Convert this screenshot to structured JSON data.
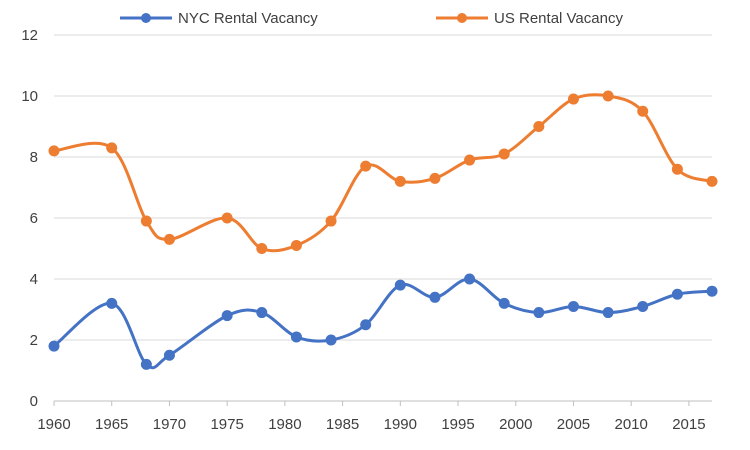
{
  "chart_data": {
    "type": "line",
    "title": "",
    "xlabel": "",
    "ylabel": "",
    "xlim": [
      1960,
      2017
    ],
    "ylim": [
      0,
      12
    ],
    "x_ticks": [
      1960,
      1965,
      1970,
      1975,
      1980,
      1985,
      1990,
      1995,
      2000,
      2005,
      2010,
      2015
    ],
    "y_ticks": [
      0,
      2,
      4,
      6,
      8,
      10,
      12
    ],
    "grid": "horizontal",
    "smooth": true,
    "legend": "top-center",
    "series": [
      {
        "name": "NYC Rental Vacancy",
        "color": "#4472C4",
        "points": [
          [
            1960,
            1.8
          ],
          [
            1965,
            3.2
          ],
          [
            1968,
            1.2
          ],
          [
            1970,
            1.5
          ],
          [
            1975,
            2.8
          ],
          [
            1978,
            2.9
          ],
          [
            1981,
            2.1
          ],
          [
            1984,
            2.0
          ],
          [
            1987,
            2.5
          ],
          [
            1990,
            3.8
          ],
          [
            1993,
            3.4
          ],
          [
            1996,
            4.0
          ],
          [
            1999,
            3.2
          ],
          [
            2002,
            2.9
          ],
          [
            2005,
            3.1
          ],
          [
            2008,
            2.9
          ],
          [
            2011,
            3.1
          ],
          [
            2014,
            3.5
          ],
          [
            2017,
            3.6
          ]
        ]
      },
      {
        "name": "US Rental Vacancy",
        "color": "#ED7D31",
        "points": [
          [
            1960,
            8.2
          ],
          [
            1965,
            8.3
          ],
          [
            1968,
            5.9
          ],
          [
            1970,
            5.3
          ],
          [
            1975,
            6.0
          ],
          [
            1978,
            5.0
          ],
          [
            1981,
            5.1
          ],
          [
            1984,
            5.9
          ],
          [
            1987,
            7.7
          ],
          [
            1990,
            7.2
          ],
          [
            1993,
            7.3
          ],
          [
            1996,
            7.9
          ],
          [
            1999,
            8.1
          ],
          [
            2002,
            9.0
          ],
          [
            2005,
            9.9
          ],
          [
            2008,
            10.0
          ],
          [
            2011,
            9.5
          ],
          [
            2014,
            7.6
          ],
          [
            2017,
            7.2
          ]
        ]
      }
    ]
  }
}
